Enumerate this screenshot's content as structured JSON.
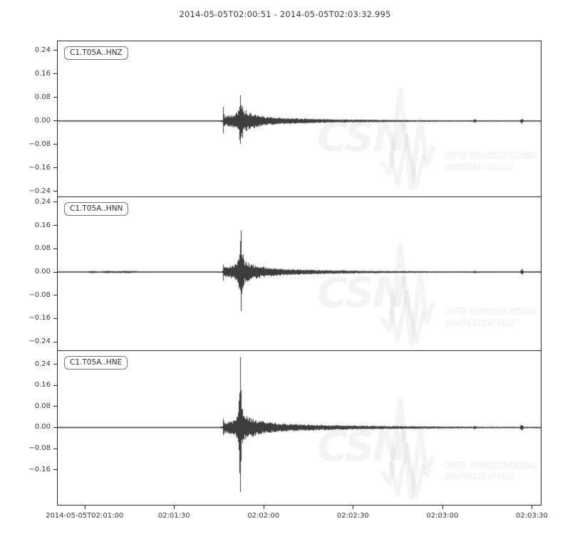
{
  "window": {
    "background": "#ffffff"
  },
  "title": "2014-05-05T02:00:51  -  2014-05-05T02:03:32.995",
  "chart_data": {
    "type": "line",
    "subtype": "seismogram-three-component",
    "title": "2014-05-05T02:00:51  -  2014-05-05T02:03:32.995",
    "start_time": "2014-05-05T02:00:51",
    "end_time": "2014-05-05T02:03:32.995",
    "duration_seconds": 161.995,
    "trace_color": "#3d3d3d",
    "axis_color": "#2b2b2b",
    "grid": false,
    "x_axis": {
      "tick_labels": [
        "2014-05-05T02:01:00",
        "02:01:30",
        "02:02:00",
        "02:02:30",
        "02:03:00",
        "02:03:30"
      ],
      "tick_seconds": [
        9,
        39,
        69,
        99,
        129,
        159
      ]
    },
    "panels": [
      {
        "label": "C1.T05A..HNZ",
        "ylim": [
          -0.257,
          0.271
        ],
        "yticks": [
          {
            "v": 0.24,
            "label": "0.24"
          },
          {
            "v": 0.16,
            "label": "0.16"
          },
          {
            "v": 0.08,
            "label": "0.08"
          },
          {
            "v": 0.0,
            "label": "0.00"
          },
          {
            "v": -0.08,
            "label": "−0.08"
          },
          {
            "v": -0.16,
            "label": "−0.16"
          },
          {
            "v": -0.24,
            "label": "−0.24"
          }
        ],
        "event": {
          "p_onset_s": 55.3,
          "s_peak_s": 61.0,
          "peak_amplitude": 0.088,
          "min_amplitude": -0.079
        },
        "seed": 11,
        "envelope": [
          [
            0,
            0.0015
          ],
          [
            140,
            0.0018
          ],
          [
            225,
            0.002
          ],
          [
            231,
            0.004
          ],
          [
            232,
            0.03
          ],
          [
            234,
            0.018
          ],
          [
            240,
            0.02
          ],
          [
            246,
            0.022
          ],
          [
            252,
            0.03
          ],
          [
            254,
            0.05
          ],
          [
            256,
            0.088
          ],
          [
            258,
            0.055
          ],
          [
            261,
            0.035
          ],
          [
            264,
            0.04
          ],
          [
            268,
            0.03
          ],
          [
            274,
            0.027
          ],
          [
            282,
            0.021
          ],
          [
            292,
            0.016
          ],
          [
            308,
            0.012
          ],
          [
            328,
            0.01
          ],
          [
            352,
            0.008
          ],
          [
            382,
            0.006
          ],
          [
            412,
            0.005
          ],
          [
            452,
            0.004
          ],
          [
            502,
            0.003
          ],
          [
            552,
            0.0025
          ],
          [
            582,
            0.0025
          ],
          [
            585,
            0.006
          ],
          [
            588,
            0.0025
          ],
          [
            640,
            0.002
          ],
          [
            648,
            0.002
          ],
          [
            651,
            0.01
          ],
          [
            654,
            0.002
          ],
          [
            678,
            0.002
          ]
        ],
        "spikes": [
          [
            232,
            0.048,
            0.042
          ],
          [
            256,
            0.088,
            0.079
          ],
          [
            259,
            0.05,
            0.058
          ]
        ]
      },
      {
        "label": "C1.T05A..HNN",
        "ylim": [
          -0.269,
          0.257
        ],
        "yticks": [
          {
            "v": 0.24,
            "label": "0.24"
          },
          {
            "v": 0.16,
            "label": "0.16"
          },
          {
            "v": 0.08,
            "label": "0.08"
          },
          {
            "v": 0.0,
            "label": "0.00"
          },
          {
            "v": -0.08,
            "label": "−0.08"
          },
          {
            "v": -0.16,
            "label": "−0.16"
          },
          {
            "v": -0.24,
            "label": "−0.24"
          }
        ],
        "event": {
          "p_onset_s": 55.3,
          "s_peak_s": 61.2,
          "peak_amplitude": 0.143,
          "min_amplitude": -0.134
        },
        "seed": 23,
        "envelope": [
          [
            0,
            0.002
          ],
          [
            40,
            0.002
          ],
          [
            48,
            0.004
          ],
          [
            58,
            0.0025
          ],
          [
            68,
            0.0045
          ],
          [
            80,
            0.003
          ],
          [
            95,
            0.0045
          ],
          [
            115,
            0.0025
          ],
          [
            150,
            0.002
          ],
          [
            225,
            0.002
          ],
          [
            231,
            0.004
          ],
          [
            232,
            0.022
          ],
          [
            234,
            0.016
          ],
          [
            240,
            0.02
          ],
          [
            246,
            0.024
          ],
          [
            252,
            0.04
          ],
          [
            255,
            0.08
          ],
          [
            257,
            0.145
          ],
          [
            259,
            0.06
          ],
          [
            262,
            0.038
          ],
          [
            266,
            0.034
          ],
          [
            272,
            0.028
          ],
          [
            280,
            0.022
          ],
          [
            292,
            0.017
          ],
          [
            308,
            0.013
          ],
          [
            328,
            0.01
          ],
          [
            352,
            0.008
          ],
          [
            382,
            0.0065
          ],
          [
            412,
            0.005
          ],
          [
            452,
            0.004
          ],
          [
            502,
            0.003
          ],
          [
            552,
            0.0025
          ],
          [
            582,
            0.0025
          ],
          [
            585,
            0.005
          ],
          [
            588,
            0.0025
          ],
          [
            640,
            0.002
          ],
          [
            648,
            0.002
          ],
          [
            651,
            0.012
          ],
          [
            654,
            0.002
          ],
          [
            678,
            0.003
          ]
        ],
        "spikes": [
          [
            232,
            0.026,
            0.03
          ],
          [
            257,
            0.143,
            0.134
          ],
          [
            260,
            0.06,
            0.05
          ]
        ]
      },
      {
        "label": "C1.T05A..HNE",
        "ylim": [
          -0.293,
          0.29
        ],
        "yticks": [
          {
            "v": 0.24,
            "label": "0.24"
          },
          {
            "v": 0.16,
            "label": "0.16"
          },
          {
            "v": 0.08,
            "label": "0.08"
          },
          {
            "v": 0.0,
            "label": "0.00"
          },
          {
            "v": -0.08,
            "label": "−0.08"
          },
          {
            "v": -0.16,
            "label": "−0.16"
          }
        ],
        "event": {
          "p_onset_s": 55.3,
          "s_peak_s": 61.0,
          "peak_amplitude": 0.268,
          "min_amplitude": -0.245
        },
        "seed": 37,
        "envelope": [
          [
            0,
            0.002
          ],
          [
            150,
            0.002
          ],
          [
            225,
            0.002
          ],
          [
            231,
            0.005
          ],
          [
            232,
            0.03
          ],
          [
            234,
            0.02
          ],
          [
            240,
            0.024
          ],
          [
            246,
            0.028
          ],
          [
            250,
            0.038
          ],
          [
            253,
            0.06
          ],
          [
            256,
            0.268
          ],
          [
            258,
            0.07
          ],
          [
            261,
            0.048
          ],
          [
            265,
            0.044
          ],
          [
            271,
            0.038
          ],
          [
            279,
            0.03
          ],
          [
            289,
            0.024
          ],
          [
            302,
            0.019
          ],
          [
            318,
            0.016
          ],
          [
            338,
            0.013
          ],
          [
            362,
            0.011
          ],
          [
            392,
            0.009
          ],
          [
            422,
            0.0075
          ],
          [
            462,
            0.006
          ],
          [
            502,
            0.005
          ],
          [
            542,
            0.004
          ],
          [
            578,
            0.0035
          ],
          [
            582,
            0.0035
          ],
          [
            585,
            0.008
          ],
          [
            588,
            0.0035
          ],
          [
            620,
            0.003
          ],
          [
            648,
            0.003
          ],
          [
            651,
            0.015
          ],
          [
            654,
            0.003
          ],
          [
            678,
            0.003
          ]
        ],
        "spikes": [
          [
            232,
            0.034,
            0.028
          ],
          [
            256,
            0.268,
            0.245
          ],
          [
            259,
            0.07,
            0.06
          ]
        ]
      }
    ],
    "watermark": {
      "logo_text": "CSN",
      "line1": "CENTRO SISMOLÓGICO NACIONAL",
      "line2": "UNIVERSIDAD DE CHILE"
    }
  }
}
